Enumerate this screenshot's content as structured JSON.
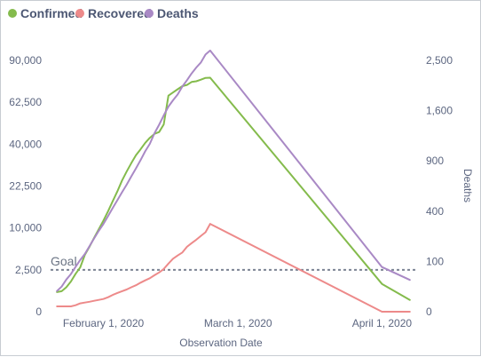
{
  "chart_data": {
    "type": "line",
    "x_dates": [
      "2020-01-22",
      "2020-01-23",
      "2020-01-24",
      "2020-01-25",
      "2020-01-26",
      "2020-01-27",
      "2020-01-28",
      "2020-01-29",
      "2020-01-30",
      "2020-01-31",
      "2020-02-01",
      "2020-02-02",
      "2020-02-03",
      "2020-02-04",
      "2020-02-05",
      "2020-02-06",
      "2020-02-07",
      "2020-02-08",
      "2020-02-09",
      "2020-02-10",
      "2020-02-11",
      "2020-02-12",
      "2020-02-13",
      "2020-02-14",
      "2020-02-15",
      "2020-02-16",
      "2020-02-17",
      "2020-02-18",
      "2020-02-19",
      "2020-02-20",
      "2020-02-21",
      "2020-02-22",
      "2020-02-23",
      "2020-02-24",
      "2020-04-01",
      "2020-04-07"
    ],
    "series": [
      {
        "name": "Confirmed",
        "axis": "left",
        "color": "#84bb4c",
        "values": [
          550,
          600,
          850,
          1300,
          2050,
          2800,
          4600,
          6000,
          7800,
          9700,
          11800,
          14400,
          17400,
          20600,
          24500,
          28000,
          31400,
          34900,
          37600,
          40600,
          43100,
          45100,
          46000,
          50000,
          66500,
          68500,
          70500,
          72500,
          73300,
          75200,
          75700,
          76700,
          77900,
          78000,
          1100,
          200
        ]
      },
      {
        "name": "Recovered",
        "axis": "left",
        "color": "#ed8a8a",
        "values": [
          40,
          40,
          40,
          40,
          60,
          100,
          120,
          140,
          170,
          200,
          230,
          300,
          400,
          500,
          600,
          700,
          850,
          1000,
          1200,
          1400,
          1600,
          1900,
          2200,
          2600,
          3300,
          4000,
          4500,
          5000,
          6000,
          6700,
          7400,
          8200,
          9000,
          11000,
          0,
          0
        ]
      },
      {
        "name": "Deaths",
        "axis": "right",
        "color": "#a989c5",
        "values": [
          17,
          25,
          41,
          56,
          80,
          106,
          132,
          170,
          213,
          259,
          304,
          362,
          426,
          492,
          565,
          638,
          724,
          813,
          910,
          1018,
          1115,
          1261,
          1383,
          1526,
          1665,
          1770,
          1868,
          2007,
          2122,
          2247,
          2360,
          2460,
          2618,
          2700,
          79,
          40
        ]
      }
    ],
    "goal": {
      "label": "Goal",
      "value": 2500,
      "axis": "left"
    },
    "xlabel": "Observation Date",
    "ylabel_right": "Deaths",
    "x_ticks": [
      {
        "date": "2020-02-01",
        "label": "February 1, 2020"
      },
      {
        "date": "2020-03-01",
        "label": "March 1, 2020"
      },
      {
        "date": "2020-04-01",
        "label": "April 1, 2020"
      }
    ],
    "y_left_ticks": [
      {
        "value": 0,
        "label": "0"
      },
      {
        "value": 2500,
        "label": "2,500"
      },
      {
        "value": 10000,
        "label": "10,000"
      },
      {
        "value": 22500,
        "label": "22,500"
      },
      {
        "value": 40000,
        "label": "40,000"
      },
      {
        "value": 62500,
        "label": "62,500"
      },
      {
        "value": 90000,
        "label": "90,000"
      }
    ],
    "y_right_ticks": [
      {
        "value": 0,
        "label": "0"
      },
      {
        "value": 100,
        "label": "100"
      },
      {
        "value": 400,
        "label": "400"
      },
      {
        "value": 900,
        "label": "900"
      },
      {
        "value": 1600,
        "label": "1,600"
      },
      {
        "value": 2500,
        "label": "2,500"
      }
    ],
    "y_left_scale": "sqrt",
    "y_right_scale": "sqrt",
    "y_left_range": [
      0,
      90000
    ],
    "y_right_range": [
      0,
      2500
    ],
    "x_range": [
      "2020-01-21",
      "2020-04-08"
    ],
    "legend_position": "top-left",
    "grid": false
  }
}
